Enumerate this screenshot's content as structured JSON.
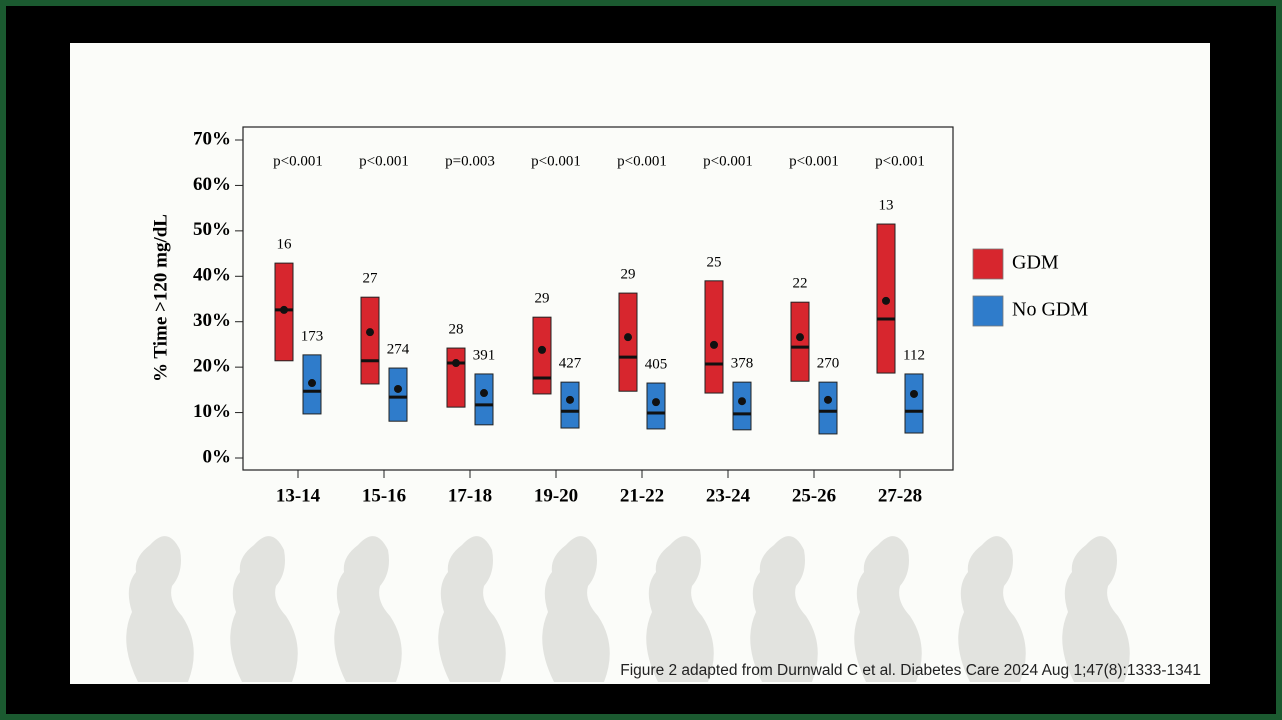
{
  "chart_data": {
    "type": "box",
    "y_label": "% Time >120 mg/dL",
    "categories": [
      "13-14",
      "15-16",
      "17-18",
      "19-20",
      "21-22",
      "23-24",
      "25-26",
      "27-28"
    ],
    "p_values": [
      "p<0.001",
      "p<0.001",
      "p=0.003",
      "p<0.001",
      "p<0.001",
      "p<0.001",
      "p<0.001",
      "p<0.001"
    ],
    "ylim": [
      0,
      70
    ],
    "yticks": [
      {
        "value": 0,
        "label": "0%"
      },
      {
        "value": 10,
        "label": "10%"
      },
      {
        "value": 20,
        "label": "20%"
      },
      {
        "value": 30,
        "label": "30%"
      },
      {
        "value": 40,
        "label": "40%"
      },
      {
        "value": 50,
        "label": "50%"
      },
      {
        "value": 60,
        "label": "60%"
      },
      {
        "value": 70,
        "label": "70%"
      }
    ],
    "series": [
      {
        "name": "GDM",
        "color": "#d7262e",
        "q1": [
          21.4,
          16.3,
          11.2,
          14.1,
          14.7,
          14.3,
          16.9,
          18.7
        ],
        "median": [
          32.6,
          21.4,
          20.9,
          17.6,
          22.2,
          20.7,
          24.4,
          30.6
        ],
        "q3": [
          42.9,
          35.4,
          24.2,
          31.0,
          36.3,
          39.0,
          34.3,
          51.5
        ],
        "mean": [
          32.6,
          27.7,
          20.9,
          23.8,
          26.6,
          24.9,
          26.6,
          34.6
        ],
        "n": [
          16,
          27,
          28,
          29,
          29,
          25,
          22,
          13
        ]
      },
      {
        "name": "No GDM",
        "color": "#2f7ccb",
        "q1": [
          9.7,
          8.1,
          7.3,
          6.6,
          6.4,
          6.2,
          5.3,
          5.5
        ],
        "median": [
          14.7,
          13.4,
          11.7,
          10.3,
          9.9,
          9.7,
          10.3,
          10.3
        ],
        "q3": [
          22.7,
          19.8,
          18.5,
          16.7,
          16.5,
          16.7,
          16.7,
          18.5
        ],
        "mean": [
          16.5,
          15.2,
          14.3,
          12.8,
          12.3,
          12.5,
          12.8,
          14.1
        ],
        "n": [
          173,
          274,
          391,
          427,
          405,
          378,
          270,
          112
        ]
      }
    ],
    "footnote": "Figure 2 adapted from Durnwald C et al. Diabetes Care 2024 Aug 1;47(8):1333-1341"
  }
}
